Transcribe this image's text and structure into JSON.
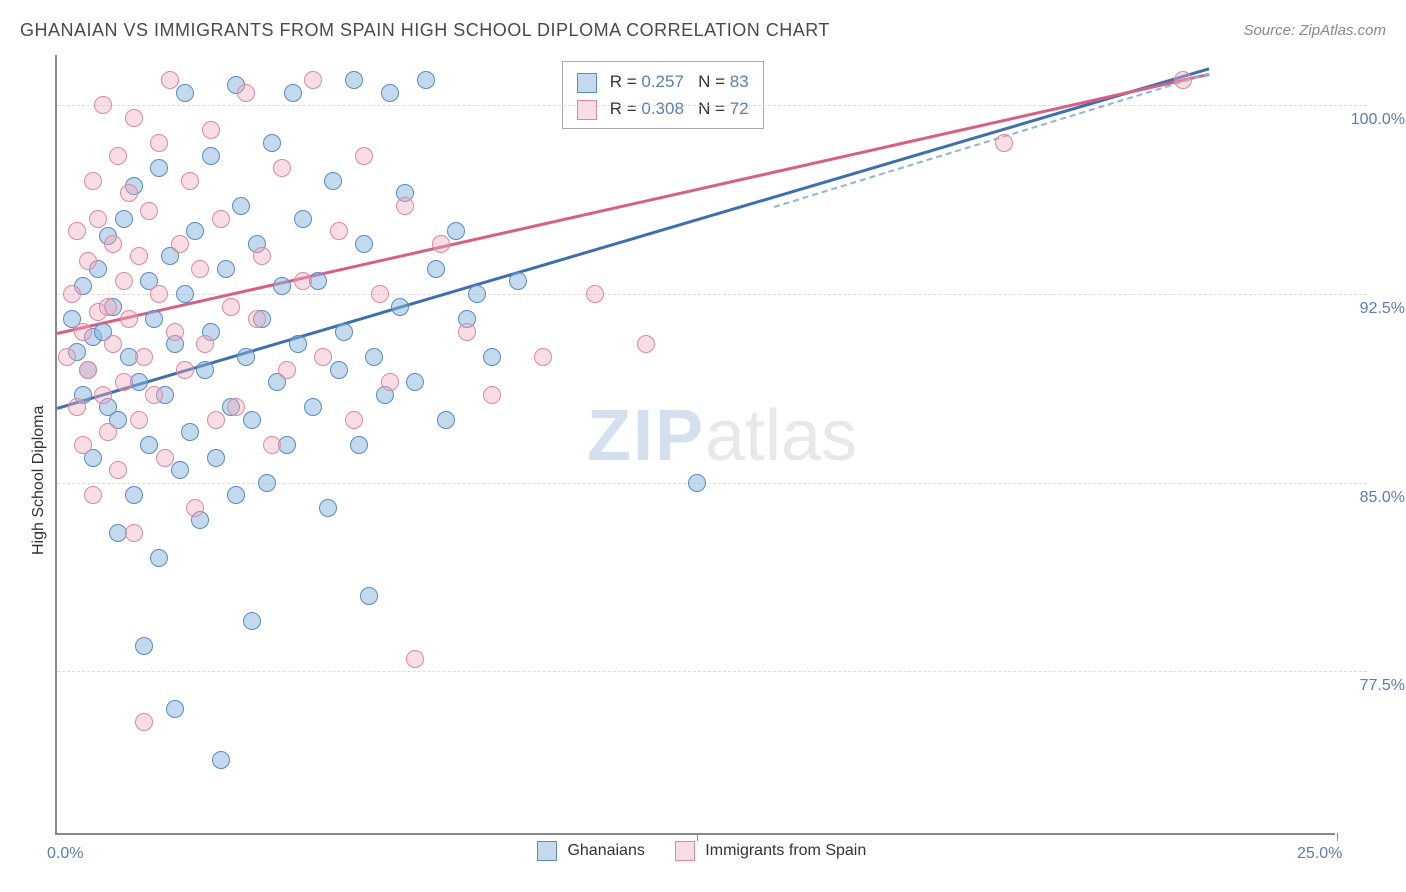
{
  "title": "GHANAIAN VS IMMIGRANTS FROM SPAIN HIGH SCHOOL DIPLOMA CORRELATION CHART",
  "source": "Source: ZipAtlas.com",
  "watermark_bold": "ZIP",
  "watermark_light": "atlas",
  "chart": {
    "type": "scatter",
    "ylabel": "High School Diploma",
    "xlim": [
      0,
      25
    ],
    "ylim": [
      71,
      102
    ],
    "yticks": [
      77.5,
      85.0,
      92.5,
      100.0
    ],
    "ytick_labels": [
      "77.5%",
      "85.0%",
      "92.5%",
      "100.0%"
    ],
    "xticks": [
      0,
      12.5,
      25
    ],
    "xtick_labels": [
      "0.0%",
      "",
      "25.0%"
    ],
    "grid_color": "#dddddd",
    "background_color": "#ffffff",
    "marker_size": 18,
    "series": [
      {
        "name": "Ghanaians",
        "color_fill": "rgba(135,180,222,0.5)",
        "color_stroke": "#5b8bc0",
        "R": "0.257",
        "N": "83",
        "trend": {
          "x1": 0,
          "y1": 88.0,
          "x2": 22.5,
          "y2": 101.5,
          "color": "#3e6fae"
        },
        "points": [
          [
            0.3,
            91.5
          ],
          [
            0.4,
            90.2
          ],
          [
            0.5,
            88.5
          ],
          [
            0.5,
            92.8
          ],
          [
            0.6,
            89.5
          ],
          [
            0.7,
            90.8
          ],
          [
            0.7,
            86.0
          ],
          [
            0.8,
            93.5
          ],
          [
            0.9,
            91.0
          ],
          [
            1.0,
            88.0
          ],
          [
            1.0,
            94.8
          ],
          [
            1.1,
            92.0
          ],
          [
            1.2,
            87.5
          ],
          [
            1.2,
            83.0
          ],
          [
            1.3,
            95.5
          ],
          [
            1.4,
            90.0
          ],
          [
            1.5,
            84.5
          ],
          [
            1.5,
            96.8
          ],
          [
            1.6,
            89.0
          ],
          [
            1.7,
            78.5
          ],
          [
            1.8,
            93.0
          ],
          [
            1.8,
            86.5
          ],
          [
            1.9,
            91.5
          ],
          [
            2.0,
            82.0
          ],
          [
            2.0,
            97.5
          ],
          [
            2.1,
            88.5
          ],
          [
            2.2,
            94.0
          ],
          [
            2.3,
            76.0
          ],
          [
            2.3,
            90.5
          ],
          [
            2.4,
            85.5
          ],
          [
            2.5,
            100.5
          ],
          [
            2.5,
            92.5
          ],
          [
            2.6,
            87.0
          ],
          [
            2.7,
            95.0
          ],
          [
            2.8,
            83.5
          ],
          [
            2.9,
            89.5
          ],
          [
            3.0,
            98.0
          ],
          [
            3.0,
            91.0
          ],
          [
            3.1,
            86.0
          ],
          [
            3.2,
            74.0
          ],
          [
            3.3,
            93.5
          ],
          [
            3.4,
            88.0
          ],
          [
            3.5,
            100.8
          ],
          [
            3.5,
            84.5
          ],
          [
            3.6,
            96.0
          ],
          [
            3.7,
            90.0
          ],
          [
            3.8,
            87.5
          ],
          [
            3.8,
            79.5
          ],
          [
            3.9,
            94.5
          ],
          [
            4.0,
            91.5
          ],
          [
            4.1,
            85.0
          ],
          [
            4.2,
            98.5
          ],
          [
            4.3,
            89.0
          ],
          [
            4.4,
            92.8
          ],
          [
            4.5,
            86.5
          ],
          [
            4.6,
            100.5
          ],
          [
            4.7,
            90.5
          ],
          [
            4.8,
            95.5
          ],
          [
            5.0,
            88.0
          ],
          [
            5.1,
            93.0
          ],
          [
            5.3,
            84.0
          ],
          [
            5.4,
            97.0
          ],
          [
            5.5,
            89.5
          ],
          [
            5.6,
            91.0
          ],
          [
            5.8,
            101.0
          ],
          [
            5.9,
            86.5
          ],
          [
            6.0,
            94.5
          ],
          [
            6.1,
            80.5
          ],
          [
            6.2,
            90.0
          ],
          [
            6.4,
            88.5
          ],
          [
            6.5,
            100.5
          ],
          [
            6.7,
            92.0
          ],
          [
            6.8,
            96.5
          ],
          [
            7.0,
            89.0
          ],
          [
            7.2,
            101.0
          ],
          [
            7.4,
            93.5
          ],
          [
            7.6,
            87.5
          ],
          [
            7.8,
            95.0
          ],
          [
            8.0,
            91.5
          ],
          [
            8.2,
            92.5
          ],
          [
            8.5,
            90.0
          ],
          [
            9.0,
            93.0
          ],
          [
            12.5,
            85.0
          ]
        ]
      },
      {
        "name": "Immigants from Spain",
        "name_display": "Immigrants from Spain",
        "color_fill": "rgba(240,170,190,0.4)",
        "color_stroke": "#e088a0",
        "R": "0.308",
        "N": "72",
        "trend": {
          "x1": 0,
          "y1": 91.0,
          "x2": 22.5,
          "y2": 101.3,
          "color": "#d95f82"
        },
        "points": [
          [
            0.2,
            90.0
          ],
          [
            0.3,
            92.5
          ],
          [
            0.4,
            88.0
          ],
          [
            0.4,
            95.0
          ],
          [
            0.5,
            91.0
          ],
          [
            0.5,
            86.5
          ],
          [
            0.6,
            93.8
          ],
          [
            0.6,
            89.5
          ],
          [
            0.7,
            97.0
          ],
          [
            0.7,
            84.5
          ],
          [
            0.8,
            91.8
          ],
          [
            0.8,
            95.5
          ],
          [
            0.9,
            88.5
          ],
          [
            0.9,
            100.0
          ],
          [
            1.0,
            92.0
          ],
          [
            1.0,
            87.0
          ],
          [
            1.1,
            94.5
          ],
          [
            1.1,
            90.5
          ],
          [
            1.2,
            98.0
          ],
          [
            1.2,
            85.5
          ],
          [
            1.3,
            93.0
          ],
          [
            1.3,
            89.0
          ],
          [
            1.4,
            96.5
          ],
          [
            1.4,
            91.5
          ],
          [
            1.5,
            83.0
          ],
          [
            1.5,
            99.5
          ],
          [
            1.6,
            87.5
          ],
          [
            1.6,
            94.0
          ],
          [
            1.7,
            90.0
          ],
          [
            1.7,
            75.5
          ],
          [
            1.8,
            95.8
          ],
          [
            1.9,
            88.5
          ],
          [
            2.0,
            92.5
          ],
          [
            2.0,
            98.5
          ],
          [
            2.1,
            86.0
          ],
          [
            2.2,
            101.0
          ],
          [
            2.3,
            91.0
          ],
          [
            2.4,
            94.5
          ],
          [
            2.5,
            89.5
          ],
          [
            2.6,
            97.0
          ],
          [
            2.7,
            84.0
          ],
          [
            2.8,
            93.5
          ],
          [
            2.9,
            90.5
          ],
          [
            3.0,
            99.0
          ],
          [
            3.1,
            87.5
          ],
          [
            3.2,
            95.5
          ],
          [
            3.4,
            92.0
          ],
          [
            3.5,
            88.0
          ],
          [
            3.7,
            100.5
          ],
          [
            3.9,
            91.5
          ],
          [
            4.0,
            94.0
          ],
          [
            4.2,
            86.5
          ],
          [
            4.4,
            97.5
          ],
          [
            4.5,
            89.5
          ],
          [
            4.8,
            93.0
          ],
          [
            5.0,
            101.0
          ],
          [
            5.2,
            90.0
          ],
          [
            5.5,
            95.0
          ],
          [
            5.8,
            87.5
          ],
          [
            6.0,
            98.0
          ],
          [
            6.3,
            92.5
          ],
          [
            6.5,
            89.0
          ],
          [
            6.8,
            96.0
          ],
          [
            7.0,
            78.0
          ],
          [
            7.5,
            94.5
          ],
          [
            8.0,
            91.0
          ],
          [
            8.5,
            88.5
          ],
          [
            9.5,
            90.0
          ],
          [
            10.5,
            92.5
          ],
          [
            11.5,
            90.5
          ],
          [
            18.5,
            98.5
          ],
          [
            22.0,
            101.0
          ]
        ]
      }
    ],
    "legend_bottom": [
      {
        "label": "Ghanaians",
        "swatch": "blue"
      },
      {
        "label": "Immigrants from Spain",
        "swatch": "pink"
      }
    ]
  }
}
